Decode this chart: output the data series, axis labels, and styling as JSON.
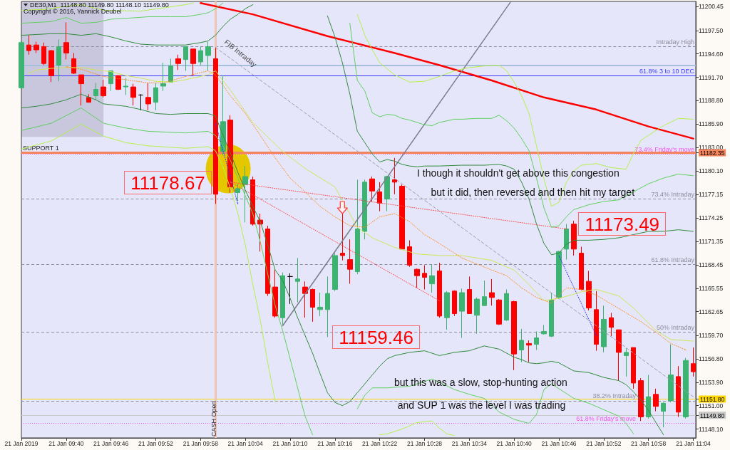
{
  "chart_data": {
    "type": "candlestick",
    "title": "DE30,M1  11148.80 11149.80 11148.10 11149.80",
    "subtitle": "Copyright © 2016, Yannick Deubel",
    "x": [
      "2019-01-21T09:34",
      "2019-01-21T09:35",
      "2019-01-21T09:36",
      "2019-01-21T09:37",
      "2019-01-21T09:38",
      "2019-01-21T09:39",
      "2019-01-21T09:40",
      "2019-01-21T09:41",
      "2019-01-21T09:42",
      "2019-01-21T09:43",
      "2019-01-21T09:44",
      "2019-01-21T09:45",
      "2019-01-21T09:46",
      "2019-01-21T09:47",
      "2019-01-21T09:48",
      "2019-01-21T09:49",
      "2019-01-21T09:50",
      "2019-01-21T09:51",
      "2019-01-21T09:52",
      "2019-01-21T09:53",
      "2019-01-21T09:54",
      "2019-01-21T09:55",
      "2019-01-21T09:56",
      "2019-01-21T09:57",
      "2019-01-21T09:58",
      "2019-01-21T09:59",
      "2019-01-21T10:00",
      "2019-01-21T10:01",
      "2019-01-21T10:02",
      "2019-01-21T10:03",
      "2019-01-21T10:04",
      "2019-01-21T10:05",
      "2019-01-21T10:06",
      "2019-01-21T10:07",
      "2019-01-21T10:08",
      "2019-01-21T10:09",
      "2019-01-21T10:10",
      "2019-01-21T10:11",
      "2019-01-21T10:12",
      "2019-01-21T10:13",
      "2019-01-21T10:14",
      "2019-01-21T10:15",
      "2019-01-21T10:16",
      "2019-01-21T10:17",
      "2019-01-21T10:18",
      "2019-01-21T10:19",
      "2019-01-21T10:20",
      "2019-01-21T10:21",
      "2019-01-21T10:22",
      "2019-01-21T10:23",
      "2019-01-21T10:24",
      "2019-01-21T10:25",
      "2019-01-21T10:26",
      "2019-01-21T10:27",
      "2019-01-21T10:28",
      "2019-01-21T10:29",
      "2019-01-21T10:30",
      "2019-01-21T10:31",
      "2019-01-21T10:32",
      "2019-01-21T10:33",
      "2019-01-21T10:34",
      "2019-01-21T10:35",
      "2019-01-21T10:36",
      "2019-01-21T10:37",
      "2019-01-21T10:38",
      "2019-01-21T10:39",
      "2019-01-21T10:40",
      "2019-01-21T10:41",
      "2019-01-21T10:42",
      "2019-01-21T10:43",
      "2019-01-21T10:44",
      "2019-01-21T10:45",
      "2019-01-21T10:46",
      "2019-01-21T10:47",
      "2019-01-21T10:48",
      "2019-01-21T10:49",
      "2019-01-21T10:50",
      "2019-01-21T10:51",
      "2019-01-21T10:52",
      "2019-01-21T10:53",
      "2019-01-21T10:54",
      "2019-01-21T10:55",
      "2019-01-21T10:56",
      "2019-01-21T10:57",
      "2019-01-21T10:58",
      "2019-01-21T10:59",
      "2019-01-21T11:00",
      "2019-01-21T11:01",
      "2019-01-21T11:02",
      "2019-01-21T11:03",
      "2019-01-21T11:04"
    ],
    "ohlc": [
      [
        11190.4,
        11196.2,
        11190.2,
        11196.0
      ],
      [
        11195.7,
        11196.9,
        11194.5,
        11195.0
      ],
      [
        11195.7,
        11196.1,
        11194.7,
        11195.1
      ],
      [
        11195.5,
        11196.0,
        11193.2,
        11193.4
      ],
      [
        11195.0,
        11195.1,
        11191.1,
        11191.9
      ],
      [
        11193.2,
        11196.4,
        11191.2,
        11195.5
      ],
      [
        11196.0,
        11198.5,
        11193.9,
        11194.7
      ],
      [
        11194.0,
        11194.7,
        11192.1,
        11192.2
      ],
      [
        11192.0,
        11192.0,
        11188.2,
        11190.9
      ],
      [
        11189.2,
        11189.6,
        11188.6,
        11188.6
      ],
      [
        11189.4,
        11191.0,
        11188.9,
        11190.2
      ],
      [
        11190.5,
        11191.4,
        11189.2,
        11189.4
      ],
      [
        11190.9,
        11192.5,
        11190.0,
        11192.5
      ],
      [
        11191.9,
        11192.0,
        11190.1,
        11190.2
      ],
      [
        11190.5,
        11191.6,
        11189.5,
        11190.6
      ],
      [
        11190.5,
        11190.9,
        11188.2,
        11189.2
      ],
      [
        11189.5,
        11189.6,
        11187.6,
        11189.5
      ],
      [
        11189.2,
        11191.0,
        11187.6,
        11188.4
      ],
      [
        11188.6,
        11191.0,
        11187.6,
        11190.4
      ],
      [
        11190.6,
        11193.5,
        11190.0,
        11190.9
      ],
      [
        11191.1,
        11194.0,
        11191.1,
        11193.1
      ],
      [
        11194.0,
        11194.5,
        11192.6,
        11193.4
      ],
      [
        11193.9,
        11195.5,
        11192.5,
        11195.5
      ],
      [
        11195.2,
        11195.2,
        11191.9,
        11193.4
      ],
      [
        11193.6,
        11195.5,
        11193.2,
        11195.0
      ],
      [
        11194.4,
        11196.1,
        11192.5,
        11195.5
      ],
      [
        11194.0,
        11195.4,
        11176.0,
        11177.2
      ],
      [
        11182.5,
        11191.9,
        11182.0,
        11186.2
      ],
      [
        11186.4,
        11187.0,
        11177.4,
        11178.1
      ],
      [
        11177.4,
        11178.5,
        11176.4,
        11177.9
      ],
      [
        11178.4,
        11180.7,
        11173.7,
        11179.4
      ],
      [
        11179.0,
        11179.4,
        11173.3,
        11173.5
      ],
      [
        11174.0,
        11174.8,
        11170.1,
        11173.5
      ],
      [
        11172.9,
        11173.3,
        11164.6,
        11164.9
      ],
      [
        11165.7,
        11167.9,
        11161.9,
        11162.1
      ],
      [
        11161.9,
        11167.5,
        11161.0,
        11167.1
      ],
      [
        11167.0,
        11167.4,
        11163.6,
        11167.0
      ],
      [
        11166.4,
        11169.3,
        11163.8,
        11166.7
      ],
      [
        11165.7,
        11166.4,
        11161.9,
        11164.9
      ],
      [
        11165.4,
        11165.5,
        11161.4,
        11163.2
      ],
      [
        11162.9,
        11165.0,
        11162.1,
        11163.2
      ],
      [
        11162.9,
        11167.0,
        11159.5,
        11164.9
      ],
      [
        11165.4,
        11169.9,
        11165.2,
        11169.6
      ],
      [
        11169.9,
        11174.8,
        11169.0,
        11169.6
      ],
      [
        11169.1,
        11171.6,
        11166.1,
        11167.9
      ],
      [
        11167.6,
        11179.0,
        11167.3,
        11172.9
      ],
      [
        11172.6,
        11179.0,
        11171.6,
        11178.7
      ],
      [
        11179.1,
        11179.4,
        11176.3,
        11177.6
      ],
      [
        11177.5,
        11178.7,
        11175.1,
        11176.1
      ],
      [
        11176.6,
        11179.5,
        11175.1,
        11179.4
      ],
      [
        11179.0,
        11181.7,
        11177.2,
        11178.7
      ],
      [
        11178.2,
        11178.4,
        11170.4,
        11170.4
      ],
      [
        11170.7,
        11171.5,
        11168.2,
        11168.4
      ],
      [
        11167.9,
        11168.0,
        11165.6,
        11167.1
      ],
      [
        11167.4,
        11168.4,
        11165.4,
        11166.9
      ],
      [
        11166.1,
        11168.5,
        11165.0,
        11167.1
      ],
      [
        11167.7,
        11168.7,
        11161.9,
        11162.1
      ],
      [
        11161.9,
        11165.2,
        11160.4,
        11165.0
      ],
      [
        11165.2,
        11165.3,
        11162.1,
        11162.4
      ],
      [
        11162.7,
        11165.5,
        11159.4,
        11165.0
      ],
      [
        11165.4,
        11167.0,
        11162.4,
        11162.4
      ],
      [
        11162.2,
        11164.4,
        11159.9,
        11164.2
      ],
      [
        11163.4,
        11166.5,
        11163.4,
        11164.5
      ],
      [
        11165.0,
        11166.7,
        11163.4,
        11164.4
      ],
      [
        11164.1,
        11164.2,
        11161.0,
        11161.1
      ],
      [
        11161.6,
        11165.4,
        11161.5,
        11164.9
      ],
      [
        11163.9,
        11164.0,
        11155.4,
        11157.4
      ],
      [
        11157.9,
        11160.5,
        11156.4,
        11159.1
      ],
      [
        11158.7,
        11159.1,
        11156.4,
        11158.5
      ],
      [
        11158.6,
        11160.2,
        11157.9,
        11159.4
      ],
      [
        11159.9,
        11161.0,
        11159.8,
        11160.2
      ],
      [
        11159.6,
        11165.0,
        11159.5,
        11164.1
      ],
      [
        11164.4,
        11170.2,
        11164.2,
        11170.1
      ],
      [
        11170.4,
        11173.5,
        11169.1,
        11172.9
      ],
      [
        11173.5,
        11173.9,
        11169.6,
        11170.4
      ],
      [
        11169.9,
        11170.7,
        11165.3,
        11165.4
      ],
      [
        11166.4,
        11167.7,
        11162.8,
        11163.1
      ],
      [
        11162.9,
        11165.2,
        11157.8,
        11158.6
      ],
      [
        11158.3,
        11163.4,
        11157.6,
        11161.7
      ],
      [
        11161.9,
        11162.5,
        11159.6,
        11160.7
      ],
      [
        11160.4,
        11160.4,
        11154.1,
        11157.6
      ],
      [
        11157.2,
        11158.1,
        11154.6,
        11157.6
      ],
      [
        11158.2,
        11158.2,
        11153.1,
        11153.8
      ],
      [
        11154.1,
        11154.4,
        11149.1,
        11149.6
      ],
      [
        11149.6,
        11154.8,
        11149.4,
        11152.1
      ],
      [
        11152.4,
        11153.1,
        11150.3,
        11150.9
      ],
      [
        11150.3,
        11151.4,
        11148.3,
        11151.3
      ],
      [
        11151.6,
        11158.6,
        11151.4,
        11154.8
      ],
      [
        11154.6,
        11155.9,
        11149.6,
        11150.2
      ],
      [
        11149.6,
        11156.9,
        11149.4,
        11156.6
      ],
      [
        11156.2,
        11158.2,
        11154.6,
        11155.2
      ]
    ],
    "colors": [
      "#3cb371",
      "#ff0000",
      "#ff0000",
      "#ff0000",
      "#ff0000",
      "#3cb371",
      "#ff0000",
      "#ff0000",
      "#ff0000",
      "#ff0000",
      "#3cb371",
      "#ff0000",
      "#3cb371",
      "#ff0000",
      "#3cb371",
      "#ff0000",
      "#000000",
      "#ff0000",
      "#3cb371",
      "#3cb371",
      "#3cb371",
      "#ff0000",
      "#3cb371",
      "#ff0000",
      "#3cb371",
      "#3cb371",
      "#ff0000",
      "#3cb371",
      "#ff0000",
      "#3cb371",
      "#3cb371",
      "#ff0000",
      "#ff0000",
      "#ff0000",
      "#ff0000",
      "#3cb371",
      "#000000",
      "#3cb371",
      "#ff0000",
      "#ff0000",
      "#3cb371",
      "#3cb371",
      "#3cb371",
      "#ff0000",
      "#ff0000",
      "#3cb371",
      "#3cb371",
      "#ff0000",
      "#ff0000",
      "#3cb371",
      "#ff0000",
      "#ff0000",
      "#ff0000",
      "#ff0000",
      "#ff0000",
      "#3cb371",
      "#ff0000",
      "#3cb371",
      "#ff0000",
      "#3cb371",
      "#ff0000",
      "#3cb371",
      "#3cb371",
      "#ff0000",
      "#ff0000",
      "#3cb371",
      "#ff0000",
      "#3cb371",
      "#ff0000",
      "#3cb371",
      "#3cb371",
      "#3cb371",
      "#3cb371",
      "#3cb371",
      "#ff0000",
      "#ff0000",
      "#ff0000",
      "#ff0000",
      "#3cb371",
      "#ff0000",
      "#ff0000",
      "#3cb371",
      "#ff0000",
      "#ff0000",
      "#3cb371",
      "#ff0000",
      "#3cb371",
      "#3cb371",
      "#ff0000",
      "#3cb371",
      "#ff0000"
    ],
    "series": [
      {
        "type": "line",
        "color": "#ff0000",
        "x": [
          "2019-01-21T09:58",
          "2019-01-21T10:05",
          "2019-01-21T10:15",
          "2019-01-21T10:24",
          "2019-01-21T10:30",
          "2019-01-21T10:37",
          "2019-01-21T10:44",
          "2019-01-21T10:51",
          "2019-01-21T10:58",
          "2019-01-21T11:04"
        ],
        "values": [
          11200.9,
          11199.5,
          11196.8,
          11194.7,
          11193.2,
          11191.3,
          11189.2,
          11187.7,
          11185.6,
          11184.1
        ]
      },
      {
        "type": "line",
        "color": "#7c7c8e",
        "x": [
          "2019-01-21T10:09",
          "2019-01-21T10:39:30"
        ],
        "values": [
          11160.9,
          11201.0
        ]
      },
      {
        "type": "line",
        "color": "#9d9db0",
        "line_style": "dashed",
        "x": [
          "2019-01-21T10:00",
          "2019-01-21T11:04"
        ],
        "values": [
          11195.4,
          11152.1
        ]
      },
      {
        "type": "line",
        "color": "#ff4a4a",
        "line_style": "dotted",
        "x": [
          "2019-01-21T10:02",
          "2019-01-21T10:47"
        ],
        "values": [
          11178.7,
          11172.9
        ]
      },
      {
        "type": "line",
        "color": "#ff4a4a",
        "line_style": "dotted",
        "x": [
          "2019-01-21T10:02",
          "2019-01-21T10:30"
        ],
        "values": [
          11178.7,
          11164.0
        ]
      },
      {
        "type": "line",
        "color": "#3030ff",
        "line_style": "dotted",
        "x": [
          "2019-01-21T10:00",
          "2019-01-21T10:03"
        ],
        "values": [
          11186.0,
          11176.0
        ]
      },
      {
        "type": "line",
        "color": "#3030ff",
        "line_style": "dotted",
        "x": [
          "2019-01-21T10:46",
          "2019-01-21T10:51"
        ],
        "values": [
          11169.6,
          11159.7
        ]
      },
      {
        "type": "line",
        "color": "#2f8a3a",
        "x": [
          "2019-01-21T09:34",
          "2019-01-21T09:36",
          "2019-01-21T09:38",
          "2019-01-21T09:40",
          "2019-01-21T09:42",
          "2019-01-21T09:44",
          "2019-01-21T09:46",
          "2019-01-21T09:48",
          "2019-01-21T09:50",
          "2019-01-21T09:52",
          "2019-01-21T09:54",
          "2019-01-21T09:56",
          "2019-01-21T09:58",
          "2019-01-21T09:59",
          "2019-01-21T10:00",
          "2019-01-21T10:01",
          "2019-01-21T10:02",
          "2019-01-21T10:03",
          "2019-01-21T10:04",
          "2019-01-21T10:05",
          "2019-01-21T10:10",
          "2019-01-21T10:15",
          "2019-01-21T10:16",
          "2019-01-21T10:17",
          "2019-01-21T10:18",
          "2019-01-21T10:19",
          "2019-01-21T10:20",
          "2019-01-21T10:21",
          "2019-01-21T10:22",
          "2019-01-21T10:23",
          "2019-01-21T10:24",
          "2019-01-21T10:25",
          "2019-01-21T10:26",
          "2019-01-21T10:27",
          "2019-01-21T10:28",
          "2019-01-21T10:30",
          "2019-01-21T10:33",
          "2019-01-21T10:36",
          "2019-01-21T10:38",
          "2019-01-21T10:39",
          "2019-01-21T10:40",
          "2019-01-21T10:41",
          "2019-01-21T10:42",
          "2019-01-21T10:43",
          "2019-01-21T10:44",
          "2019-01-21T10:45",
          "2019-01-21T10:46",
          "2019-01-21T10:47",
          "2019-01-21T10:48",
          "2019-01-21T10:50",
          "2019-01-21T10:52",
          "2019-01-21T10:54",
          "2019-01-21T10:56",
          "2019-01-21T10:58",
          "2019-01-21T11:00",
          "2019-01-21T11:02",
          "2019-01-21T11:04"
        ],
        "values": [
          11196.9,
          11197.0,
          11197.1,
          11197.1,
          11196.9,
          11197.1,
          11196.7,
          11196.2,
          11195.8,
          11195.7,
          11195.7,
          11195.7,
          11196.0,
          11196.2,
          11196.9,
          11198.0,
          11198.9,
          11199.5,
          11200.2,
          11200.7,
          null,
          11199.3,
          11196.7,
          11193.5,
          11189.6,
          11185.0,
          11183.6,
          11182.2,
          11181.2,
          11181.5,
          11181.3,
          11180.9,
          11180.7,
          11180.6,
          11180.7,
          11180.7,
          11180.8,
          11180.8,
          11180.9,
          11180.7,
          11180.3,
          11178.7,
          11176.6,
          11173.5,
          11171.1,
          11169.7,
          11169.9,
          11171.0,
          11171.5,
          11171.5,
          11171.6,
          11171.8,
          11172.2,
          11172.6,
          11172.6,
          11172.8,
          11172.6
        ]
      },
      {
        "type": "line",
        "color": "#2f8a3a",
        "x": [
          "2019-01-21T09:34",
          "2019-01-21T09:36",
          "2019-01-21T09:38",
          "2019-01-21T09:40",
          "2019-01-21T09:42",
          "2019-01-21T09:44",
          "2019-01-21T09:45",
          "2019-01-21T09:46",
          "2019-01-21T09:48",
          "2019-01-21T09:50",
          "2019-01-21T09:52",
          "2019-01-21T09:54",
          "2019-01-21T09:56",
          "2019-01-21T09:58",
          "2019-01-21T09:59",
          "2019-01-21T10:00",
          "2019-01-21T10:01",
          "2019-01-21T10:02",
          "2019-01-21T10:03",
          "2019-01-21T10:04",
          "2019-01-21T10:05",
          "2019-01-21T10:06",
          "2019-01-21T10:07",
          "2019-01-21T10:08",
          "2019-01-21T10:09",
          "2019-01-21T10:10",
          "2019-01-21T10:11",
          "2019-01-21T10:12",
          "2019-01-21T10:13",
          "2019-01-21T10:14",
          "2019-01-21T10:15",
          "2019-01-21T10:16",
          "2019-01-21T10:17",
          "2019-01-21T10:18",
          "2019-01-21T10:19",
          "2019-01-21T10:20",
          "2019-01-21T10:21",
          "2019-01-21T10:22",
          "2019-01-21T10:23",
          "2019-01-21T10:24",
          "2019-01-21T10:26",
          "2019-01-21T10:28",
          "2019-01-21T10:30",
          "2019-01-21T10:32",
          "2019-01-21T10:34",
          "2019-01-21T10:36",
          "2019-01-21T10:38",
          "2019-01-21T10:40",
          "2019-01-21T10:41",
          "2019-01-21T10:42",
          "2019-01-21T10:43",
          "2019-01-21T10:44",
          "2019-01-21T10:45",
          "2019-01-21T10:46",
          "2019-01-21T10:47",
          "2019-01-21T10:48",
          "2019-01-21T10:50",
          "2019-01-21T10:52",
          "2019-01-21T10:54",
          "2019-01-21T10:55",
          "2019-01-21T10:56",
          "2019-01-21T10:57",
          "2019-01-21T10:58",
          "2019-01-21T10:59",
          "2019-01-21T11:00"
        ],
        "values": [
          11187.9,
          11188.1,
          11188.4,
          11188.9,
          11189.6,
          11188.9,
          11188.4,
          11188.3,
          11188.1,
          11187.7,
          11187.2,
          11187.1,
          11187.2,
          11187.2,
          11187.2,
          11186.9,
          11184.5,
          11182.3,
          11179.9,
          11177.7,
          11175.7,
          11173.8,
          11170.9,
          11167.8,
          11166.5,
          11164.3,
          11161.9,
          11159.7,
          11157.5,
          11155.0,
          11152.6,
          11151.4,
          11151.0,
          11151.5,
          11152.6,
          11153.7,
          11154.8,
          11155.9,
          11156.8,
          11157.2,
          11157.6,
          11157.8,
          11157.2,
          11157.6,
          11157.8,
          11158.4,
          11158.0,
          11157.0,
          11156.7,
          11156.3,
          11156.2,
          11156.3,
          11156.5,
          11156.3,
          11155.8,
          11155.3,
          11155.1,
          11154.5,
          11154.1,
          11153.6,
          11152.7,
          11151.7,
          11150.4,
          11148.9,
          11147.4
        ]
      },
      {
        "type": "line",
        "color": "#5fcf5f",
        "x": [
          "2019-01-21T09:34",
          "2019-01-21T09:36",
          "2019-01-21T09:38",
          "2019-01-21T09:40",
          "2019-01-21T09:42",
          "2019-01-21T09:44",
          "2019-01-21T09:46",
          "2019-01-21T09:48",
          "2019-01-21T09:51",
          "2019-01-21T09:54",
          "2019-01-21T09:56",
          "2019-01-21T09:58",
          "2019-01-21T09:59",
          "2019-01-21T10:00",
          "2019-01-21T10:01",
          "2019-01-21T10:09",
          "2019-01-21T10:18",
          "2019-01-21T10:19",
          "2019-01-21T10:20",
          "2019-01-21T10:21",
          "2019-01-21T10:22",
          "2019-01-21T10:23",
          "2019-01-21T10:24",
          "2019-01-21T10:25",
          "2019-01-21T10:26",
          "2019-01-21T10:27",
          "2019-01-21T10:28",
          "2019-01-21T10:29",
          "2019-01-21T10:30",
          "2019-01-21T10:32",
          "2019-01-21T10:33",
          "2019-01-21T10:35",
          "2019-01-21T10:37",
          "2019-01-21T10:38",
          "2019-01-21T10:39",
          "2019-01-21T10:40",
          "2019-01-21T10:41",
          "2019-01-21T10:42",
          "2019-01-21T10:43",
          "2019-01-21T10:44",
          "2019-01-21T10:45",
          "2019-01-21T10:46",
          "2019-01-21T10:47",
          "2019-01-21T10:48",
          "2019-01-21T10:50",
          "2019-01-21T10:52",
          "2019-01-21T10:54",
          "2019-01-21T10:56",
          "2019-01-21T10:58",
          "2019-01-21T11:00",
          "2019-01-21T11:02",
          "2019-01-21T11:04"
        ],
        "values": [
          11198.4,
          11198.5,
          11198.6,
          11199.1,
          11198.4,
          11198.5,
          11198.9,
          11199.0,
          11199.2,
          11199.2,
          11199.2,
          11199.5,
          11199.7,
          11200.2,
          11200.9,
          null,
          11198.4,
          11191.3,
          11190.0,
          11187.3,
          11186.8,
          11187.1,
          11187.0,
          11186.6,
          11186.4,
          11186.1,
          11185.8,
          11185.7,
          11186.1,
          11186.5,
          11186.5,
          11186.6,
          11186.6,
          11187.0,
          11186.3,
          11185.4,
          11184.1,
          11182.6,
          11179.2,
          11175.5,
          11173.1,
          11173.3,
          11174.4,
          11175.3,
          11175.9,
          11176.3,
          11176.5,
          11177.5,
          11178.5,
          11179.2,
          11179.7,
          11179.5
        ]
      },
      {
        "type": "line",
        "color": "#5fcf5f",
        "x": [
          "2019-01-21T09:34",
          "2019-01-21T09:38",
          "2019-01-21T09:42",
          "2019-01-21T09:45",
          "2019-01-21T09:48",
          "2019-01-21T09:51",
          "2019-01-21T09:56",
          "2019-01-21T09:59",
          "2019-01-21T10:00",
          "2019-01-21T10:01",
          "2019-01-21T10:02",
          "2019-01-21T10:03",
          "2019-01-21T10:04",
          "2019-01-21T10:05",
          "2019-01-21T10:06",
          "2019-01-21T10:07",
          "2019-01-21T10:08",
          "2019-01-21T10:09",
          "2019-01-21T10:10",
          "2019-01-21T10:11",
          "2019-01-21T10:12",
          "2019-01-21T10:13",
          "2019-01-21T10:16",
          "2019-01-21T10:19",
          "2019-01-21T10:20",
          "2019-01-21T10:21",
          "2019-01-21T10:23",
          "2019-01-21T10:26",
          "2019-01-21T10:29",
          "2019-01-21T10:30",
          "2019-01-21T10:32",
          "2019-01-21T10:34",
          "2019-01-21T10:36",
          "2019-01-21T10:38",
          "2019-01-21T10:40",
          "2019-01-21T10:42",
          "2019-01-21T10:43",
          "2019-01-21T10:44",
          "2019-01-21T10:45",
          "2019-01-21T10:46",
          "2019-01-21T10:48",
          "2019-01-21T10:50",
          "2019-01-21T10:52",
          "2019-01-21T10:54",
          "2019-01-21T10:55",
          "2019-01-21T10:56"
        ],
        "values": [
          11185.1,
          11186.0,
          11187.9,
          11186.0,
          11185.4,
          11185.0,
          11184.8,
          11185.0,
          11184.5,
          11183.2,
          11181.4,
          11179.2,
          11177.0,
          11174.8,
          11171.3,
          11167.3,
          11163.4,
          11160.3,
          11156.8,
          11153.2,
          11149.7,
          11147.4,
          null,
          11150.6,
          11152.3,
          11153.2,
          11153.2,
          11153.4,
          11154.3,
          11153.9,
          11153.0,
          11152.4,
          11151.9,
          11150.2,
          11149.3,
          11148.8,
          11149.9,
          11153.0,
          11153.7,
          11153.1,
          11151.9,
          11151.3,
          11150.5,
          11149.7,
          11148.8,
          11147.5
        ]
      },
      {
        "type": "line",
        "color": "#b5f04a",
        "x": [
          "2019-01-21T09:34",
          "2019-01-21T09:37",
          "2019-01-21T09:40",
          "2019-01-21T09:42",
          "2019-01-21T09:45",
          "2019-01-21T09:50",
          "2019-01-21T09:53",
          "2019-01-21T09:56",
          "2019-01-21T09:57",
          "2019-01-21T10:08",
          "2019-01-21T10:19",
          "2019-01-21T10:20",
          "2019-01-21T10:21",
          "2019-01-21T10:22",
          "2019-01-21T10:24",
          "2019-01-21T10:26",
          "2019-01-21T10:28",
          "2019-01-21T10:30",
          "2019-01-21T10:32",
          "2019-01-21T10:34",
          "2019-01-21T10:36",
          "2019-01-21T10:38",
          "2019-01-21T10:39",
          "2019-01-21T10:40",
          "2019-01-21T10:41",
          "2019-01-21T10:42",
          "2019-01-21T10:43",
          "2019-01-21T10:44",
          "2019-01-21T10:45",
          "2019-01-21T10:46",
          "2019-01-21T10:47",
          "2019-01-21T10:48",
          "2019-01-21T10:49",
          "2019-01-21T10:51",
          "2019-01-21T10:53",
          "2019-01-21T10:55",
          "2019-01-21T10:56",
          "2019-01-21T10:57",
          "2019-01-21T10:58",
          "2019-01-21T11:00",
          "2019-01-21T11:02",
          "2019-01-21T11:04"
        ],
        "values": [
          11200.0,
          11200.1,
          11200.5,
          11200.7,
          11200.0,
          11199.9,
          11200.3,
          11200.7,
          11200.9,
          null,
          11199.5,
          11196.9,
          11195.1,
          11193.5,
          11192.0,
          11191.1,
          11191.2,
          11191.8,
          11192.5,
          11192.9,
          11193.1,
          11193.2,
          11192.5,
          11191.1,
          11189.4,
          11187.2,
          11183.2,
          11179.1,
          11175.7,
          11176.2,
          11178.7,
          11180.1,
          11180.8,
          11181.0,
          11180.5,
          11180.3,
          11182.3,
          11183.9,
          11184.5,
          11185.7,
          11186.6,
          11186.5
        ]
      },
      {
        "type": "line",
        "color": "#b5f04a",
        "x": [
          "2019-01-21T09:34",
          "2019-01-21T09:38",
          "2019-01-21T09:42",
          "2019-01-21T09:45",
          "2019-01-21T09:48",
          "2019-01-21T09:51",
          "2019-01-21T09:56",
          "2019-01-21T09:59",
          "2019-01-21T10:00",
          "2019-01-21T10:01",
          "2019-01-21T10:02",
          "2019-01-21T10:03",
          "2019-01-21T10:04",
          "2019-01-21T10:05",
          "2019-01-21T10:06",
          "2019-01-21T10:07",
          "2019-01-21T10:08",
          "2019-01-21T10:14",
          "2019-01-21T10:22",
          "2019-01-21T10:23",
          "2019-01-21T10:25",
          "2019-01-21T10:27",
          "2019-01-21T10:29",
          "2019-01-21T10:30",
          "2019-01-21T10:31",
          "2019-01-21T10:32"
        ],
        "values": [
          11182.8,
          11183.8,
          11185.9,
          11184.4,
          11183.6,
          11183.2,
          11182.9,
          11183.1,
          11182.6,
          11180.6,
          11177.9,
          11174.8,
          11170.9,
          11166.0,
          11161.6,
          11156.3,
          11151.5,
          null,
          11147.4,
          11147.5,
          11148.1,
          11148.9,
          11149.1,
          11148.2,
          11147.5,
          11147.3
        ]
      },
      {
        "type": "line",
        "color": "#cfe65a",
        "x": [
          "2019-01-21T09:35",
          "2019-01-21T09:36",
          "2019-01-21T09:38",
          "2019-01-21T09:40",
          "2019-01-21T09:42",
          "2019-01-21T09:44",
          "2019-01-21T09:46",
          "2019-01-21T09:48",
          "2019-01-21T09:50",
          "2019-01-21T09:52",
          "2019-01-21T09:54",
          "2019-01-21T09:56",
          "2019-01-21T09:58",
          "2019-01-21T09:59",
          "2019-01-21T10:00",
          "2019-01-21T10:02",
          "2019-01-21T10:05",
          "2019-01-21T10:09",
          "2019-01-21T10:12",
          "2019-01-21T10:16",
          "2019-01-21T10:19",
          "2019-01-21T10:21",
          "2019-01-21T10:23",
          "2019-01-21T10:24",
          "2019-01-21T10:27",
          "2019-01-21T10:30",
          "2019-01-21T10:33",
          "2019-01-21T10:37",
          "2019-01-21T10:40",
          "2019-01-21T10:42",
          "2019-01-21T10:44",
          "2019-01-21T10:46",
          "2019-01-21T10:48",
          "2019-01-21T10:49",
          "2019-01-21T10:51",
          "2019-01-21T10:54",
          "2019-01-21T10:56",
          "2019-01-21T10:59",
          "2019-01-21T11:01",
          "2019-01-21T11:04"
        ],
        "values": [
          11192.2,
          11192.6,
          11192.8,
          11192.9,
          11192.9,
          11192.6,
          11192.4,
          11191.9,
          11191.6,
          11191.2,
          11191.1,
          11191.4,
          11191.8,
          11192.0,
          11192.5,
          11190.1,
          11186.1,
          11182.5,
          11180.4,
          11178.1,
          11173.1,
          11171.8,
          11171.0,
          11170.6,
          11169.8,
          11169.6,
          11169.6,
          11169.0,
          11167.8,
          11166.0,
          11164.0,
          11164.3,
          11164.8,
          11165.1,
          11165.4,
          11164.6,
          11163.1,
          11160.3,
          11159.2,
          11159.0
        ]
      },
      {
        "type": "line",
        "color": "#ff8c1a",
        "line_style": "dotted",
        "x": [
          "2019-01-21T09:40",
          "2019-01-21T09:42",
          "2019-01-21T09:45",
          "2019-01-21T09:51",
          "2019-01-21T09:53",
          "2019-01-21T09:56",
          "2019-01-21T09:59",
          "2019-01-21T10:00",
          "2019-01-21T10:02",
          "2019-01-21T10:04",
          "2019-01-21T10:06",
          "2019-01-21T10:08",
          "2019-01-21T10:10",
          "2019-01-21T10:12",
          "2019-01-21T10:14",
          "2019-01-21T10:16",
          "2019-01-21T10:18",
          "2019-01-21T10:20",
          "2019-01-21T10:22",
          "2019-01-21T10:24",
          "2019-01-21T10:26",
          "2019-01-21T10:28",
          "2019-01-21T10:30",
          "2019-01-21T10:33",
          "2019-01-21T10:37",
          "2019-01-21T10:39",
          "2019-01-21T10:41",
          "2019-01-21T10:43",
          "2019-01-21T10:45",
          "2019-01-21T10:47",
          "2019-01-21T10:49",
          "2019-01-21T10:51",
          "2019-01-21T10:53",
          "2019-01-21T10:55",
          "2019-01-21T10:57",
          "2019-01-21T10:59",
          "2019-01-21T11:01",
          "2019-01-21T11:03"
        ],
        "values": [
          11193.0,
          11192.7,
          11191.8,
          11191.0,
          11191.0,
          11191.8,
          11192.5,
          11192.0,
          11189.4,
          11187.2,
          11184.5,
          11181.7,
          11179.2,
          11177.5,
          11175.7,
          11174.4,
          11173.3,
          11173.1,
          11174.4,
          11174.8,
          11173.8,
          11172.2,
          11171.1,
          11169.3,
          11167.8,
          11167.1,
          11165.6,
          11164.4,
          11163.7,
          11165.6,
          11165.4,
          11164.7,
          11163.6,
          11162.5,
          11161.4,
          11160.1,
          11158.7,
          11157.9
        ]
      }
    ],
    "xlim": [
      "2019-01-21T09:34",
      "2019-01-21T11:04:20"
    ],
    "xticks": [
      {
        "value": "2019-01-21T09:34",
        "label": "21 Jan 2019"
      },
      {
        "value": "2019-01-21T09:40",
        "label": "21 Jan 09:40"
      },
      {
        "value": "2019-01-21T09:46",
        "label": "21 Jan 09:46"
      },
      {
        "value": "2019-01-21T09:52",
        "label": "21 Jan 09:52"
      },
      {
        "value": "2019-01-21T09:58",
        "label": "21 Jan 09:58"
      },
      {
        "value": "2019-01-21T10:04",
        "label": "21 Jan 10:04"
      },
      {
        "value": "2019-01-21T10:10",
        "label": "21 Jan 10:10"
      },
      {
        "value": "2019-01-21T10:16",
        "label": "21 Jan 10:16"
      },
      {
        "value": "2019-01-21T10:22",
        "label": "21 Jan 10:22"
      },
      {
        "value": "2019-01-21T10:28",
        "label": "21 Jan 10:28"
      },
      {
        "value": "2019-01-21T10:34",
        "label": "21 Jan 10:34"
      },
      {
        "value": "2019-01-21T10:40",
        "label": "21 Jan 10:40"
      },
      {
        "value": "2019-01-21T10:46",
        "label": "21 Jan 10:46"
      },
      {
        "value": "2019-01-21T10:52",
        "label": "21 Jan 10:52"
      },
      {
        "value": "2019-01-21T10:58",
        "label": "21 Jan 10:58"
      },
      {
        "value": "2019-01-21T11:04",
        "label": "21 Jan 11:04"
      }
    ],
    "ylim": [
      11147.0,
      11201.1
    ],
    "yticks": [
      11200.45,
      {
        "value": 11197.5,
        "label": "11197.50"
      },
      {
        "value": 11194.6,
        "label": "11194.60"
      },
      {
        "value": 11191.7,
        "label": "11191.70"
      },
      {
        "value": 11188.8,
        "label": "11188.80"
      },
      {
        "value": 11185.9,
        "label": "11185.90"
      },
      {
        "value": 11183,
        "label": "11183.00"
      },
      11182.35,
      {
        "value": 11180.1,
        "label": "11180.10"
      },
      11177.15,
      11174.25,
      11171.35,
      11168.45,
      11165.55,
      11162.65,
      {
        "value": 11159.7,
        "label": "11159.70"
      },
      {
        "value": 11156.8,
        "label": "11156.80"
      },
      {
        "value": 11153.9,
        "label": "11153.90"
      },
      {
        "value": 11151.8,
        "label": "11151.80"
      },
      {
        "value": 11151,
        "label": "11151.00"
      },
      {
        "value": 11149.8,
        "label": "11149.80"
      },
      {
        "value": 11148.1,
        "label": "11148.10"
      }
    ],
    "ref_lines": [
      {
        "axis": "y",
        "value": 11195.5,
        "label": "Intraday High",
        "color": "#8e8e9e",
        "line_style": "dashed"
      },
      {
        "axis": "y",
        "value": 11193.2,
        "color": "#a6c0dc",
        "line_style": "solid"
      },
      {
        "axis": "y",
        "value": 11191.9,
        "label": "61.8% 3 to 10 DEC",
        "color": "#3a3aff",
        "line_style": "solid"
      },
      {
        "axis": "y",
        "value": 11182.35,
        "label": "SUPPORT 1",
        "color": "#f5845c",
        "line_style": "solid"
      },
      {
        "axis": "y",
        "value": 11182.2,
        "label": "73.4% Friday's move",
        "color": "#ee55ee",
        "line_style": "dotted"
      },
      {
        "axis": "y",
        "value": 11176.6,
        "label": "73.4% Intraday",
        "color": "#8e8e9e",
        "line_style": "dashed"
      },
      {
        "axis": "y",
        "value": 11168.5,
        "label": "61.8% Intraday",
        "color": "#8e8e9e",
        "line_style": "dashed"
      },
      {
        "axis": "y",
        "value": 11160.1,
        "label": "50% Intraday",
        "color": "#8e8e9e",
        "line_style": "dashed"
      },
      {
        "axis": "y",
        "value": 11151.8,
        "color": "#ffd700",
        "line_style": "solid"
      },
      {
        "axis": "y",
        "value": 11151.6,
        "label": "38.2% Intraday",
        "color": "#8e8e9e",
        "line_style": "dashed"
      },
      {
        "axis": "y",
        "value": 11149.8,
        "color": "#c8c8c8",
        "line_style": "solid"
      },
      {
        "axis": "y",
        "value": 11148.8,
        "label": "61.8% Friday's move",
        "color": "#ee55ee",
        "line_style": "dotted"
      },
      {
        "axis": "x",
        "value": "2019-01-21T10:00",
        "label": "CASH Open",
        "color": "#f0c4b4",
        "line_style": "solid"
      }
    ],
    "annotations": [
      {
        "text": "11178.67",
        "x": "2019-01-21T10:02",
        "y": 11178.67
      },
      {
        "text": "11159.46",
        "x": "2019-01-21T10:15",
        "y": 11159.46
      },
      {
        "text": "11173.49",
        "x": "2019-01-21T10:47",
        "y": 11173.49
      },
      "I though it shouldn't get above this congestion",
      "but it did, then reversed and then hit my target",
      "but this was a slow, stop-hunting action",
      "and SUP 1 was the level I was trading",
      "FIB Intraday"
    ]
  }
}
